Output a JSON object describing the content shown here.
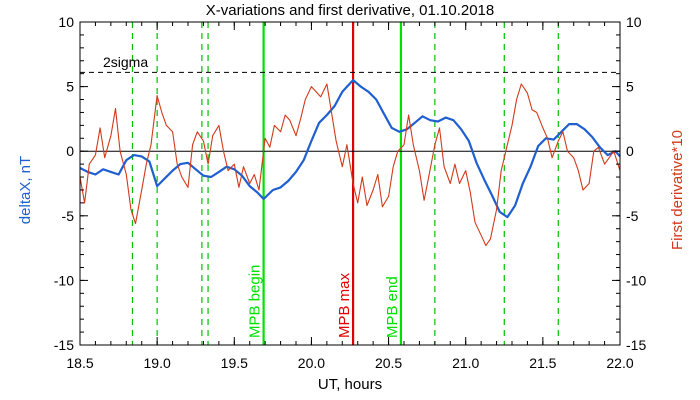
{
  "chart_data": {
    "type": "line",
    "title": "X-variations and first derivative, 01.10.2018",
    "xlabel": "UT, hours",
    "ylabel_left": "deltaX, nT",
    "ylabel_right": "First derivative*10",
    "xlim": [
      18.5,
      22.0
    ],
    "ylim_left": [
      -15,
      10
    ],
    "ylim_right": [
      -15,
      10
    ],
    "x_ticks": [
      "18.5",
      "19.0",
      "19.5",
      "20.0",
      "20.5",
      "21.0",
      "21.5",
      "22.0"
    ],
    "y_ticks": [
      "10",
      "5",
      "0",
      "-5",
      "-10",
      "-15"
    ],
    "grid": false,
    "zero_line": 0,
    "threshold": {
      "label": "2sigma",
      "value": 6.1
    },
    "vertical_lines": [
      {
        "x": 19.69,
        "label": "MPB begin",
        "color": "#00e000",
        "style": "solid"
      },
      {
        "x": 20.27,
        "label": "MPB max",
        "color": "#e00000",
        "style": "solid"
      },
      {
        "x": 20.58,
        "label": "MPB end",
        "color": "#00e000",
        "style": "solid"
      },
      {
        "x": 18.84,
        "label": "",
        "color": "#00c000",
        "style": "dashed"
      },
      {
        "x": 19.0,
        "label": "",
        "color": "#00c000",
        "style": "dashed"
      },
      {
        "x": 19.29,
        "label": "",
        "color": "#00c000",
        "style": "dashed"
      },
      {
        "x": 19.33,
        "label": "",
        "color": "#00c000",
        "style": "dashed"
      },
      {
        "x": 20.8,
        "label": "",
        "color": "#00c000",
        "style": "dashed"
      },
      {
        "x": 21.25,
        "label": "",
        "color": "#00c000",
        "style": "dashed"
      },
      {
        "x": 21.6,
        "label": "",
        "color": "#00c000",
        "style": "dashed"
      }
    ],
    "series": [
      {
        "axis": "left",
        "color": "#1f5fd0",
        "x": [
          18.5,
          18.55,
          18.6,
          18.65,
          18.7,
          18.75,
          18.8,
          18.85,
          18.9,
          18.95,
          19.0,
          19.05,
          19.1,
          19.15,
          19.2,
          19.25,
          19.3,
          19.35,
          19.4,
          19.45,
          19.5,
          19.55,
          19.6,
          19.65,
          19.69,
          19.75,
          19.8,
          19.85,
          19.9,
          19.95,
          20.0,
          20.05,
          20.1,
          20.15,
          20.2,
          20.27,
          20.32,
          20.37,
          20.42,
          20.47,
          20.52,
          20.57,
          20.62,
          20.67,
          20.72,
          20.77,
          20.82,
          20.87,
          20.92,
          20.97,
          21.02,
          21.07,
          21.12,
          21.17,
          21.22,
          21.27,
          21.32,
          21.37,
          21.42,
          21.47,
          21.52,
          21.57,
          21.62,
          21.67,
          21.72,
          21.77,
          21.82,
          21.87,
          21.92,
          21.97,
          22.0
        ],
        "y": [
          -1.3,
          -1.6,
          -1.8,
          -1.4,
          -1.6,
          -1.8,
          -0.7,
          -0.3,
          -0.4,
          -0.8,
          -2.7,
          -2.1,
          -1.5,
          -1.0,
          -0.9,
          -1.4,
          -1.9,
          -2.0,
          -1.6,
          -1.2,
          -1.4,
          -1.9,
          -2.7,
          -3.2,
          -3.7,
          -3.0,
          -2.8,
          -2.3,
          -1.6,
          -0.7,
          0.8,
          2.2,
          2.8,
          3.5,
          4.6,
          5.5,
          5.0,
          4.6,
          4.0,
          2.9,
          1.8,
          1.5,
          1.7,
          2.2,
          2.7,
          2.4,
          2.3,
          2.6,
          2.4,
          1.7,
          0.8,
          -0.9,
          -2.2,
          -3.4,
          -4.7,
          -5.1,
          -4.2,
          -2.5,
          -1.2,
          0.4,
          1.0,
          0.9,
          1.5,
          2.1,
          2.1,
          1.7,
          1.1,
          0.3,
          -0.3,
          0.0,
          -0.4
        ]
      },
      {
        "axis": "right",
        "color": "#d03a1a",
        "x": [
          18.5,
          18.53,
          18.56,
          18.6,
          18.63,
          18.66,
          18.7,
          18.73,
          18.76,
          18.8,
          18.83,
          18.86,
          18.9,
          18.93,
          18.96,
          19.0,
          19.03,
          19.06,
          19.1,
          19.13,
          19.16,
          19.2,
          19.23,
          19.26,
          19.3,
          19.33,
          19.36,
          19.4,
          19.43,
          19.46,
          19.5,
          19.53,
          19.56,
          19.6,
          19.63,
          19.66,
          19.7,
          19.73,
          19.76,
          19.8,
          19.83,
          19.86,
          19.9,
          19.93,
          19.96,
          20.0,
          20.03,
          20.06,
          20.1,
          20.13,
          20.16,
          20.2,
          20.23,
          20.27,
          20.3,
          20.33,
          20.36,
          20.4,
          20.43,
          20.46,
          20.5,
          20.53,
          20.56,
          20.6,
          20.63,
          20.66,
          20.7,
          20.73,
          20.76,
          20.8,
          20.83,
          20.86,
          20.9,
          20.93,
          20.96,
          21.0,
          21.03,
          21.06,
          21.1,
          21.13,
          21.16,
          21.2,
          21.23,
          21.26,
          21.3,
          21.33,
          21.36,
          21.4,
          21.43,
          21.46,
          21.5,
          21.53,
          21.56,
          21.6,
          21.63,
          21.66,
          21.7,
          21.73,
          21.76,
          21.8,
          21.83,
          21.86,
          21.9,
          21.93,
          21.96,
          22.0
        ],
        "y": [
          -2.0,
          -4.0,
          -1.0,
          -0.3,
          1.8,
          -0.5,
          1.2,
          3.3,
          0.0,
          -1.8,
          -4.5,
          -5.6,
          -3.0,
          -1.0,
          0.5,
          4.3,
          3.0,
          2.0,
          1.5,
          -1.0,
          -2.0,
          -2.8,
          0.5,
          1.5,
          0.8,
          -1.0,
          1.2,
          2.0,
          0.0,
          -1.5,
          -1.0,
          -2.8,
          -1.2,
          -2.5,
          -1.8,
          -3.0,
          1.0,
          0.3,
          2.0,
          1.5,
          2.8,
          2.4,
          1.2,
          2.5,
          4.0,
          5.0,
          4.6,
          4.2,
          5.2,
          3.0,
          0.8,
          -1.2,
          0.5,
          -2.5,
          -4.0,
          -2.0,
          -4.2,
          -3.0,
          -1.8,
          -4.3,
          -3.5,
          -1.2,
          0.0,
          0.5,
          2.8,
          0.5,
          -1.5,
          -3.8,
          -2.0,
          0.5,
          1.8,
          -1.2,
          -2.5,
          -1.0,
          -2.5,
          -1.5,
          -3.2,
          -5.5,
          -6.5,
          -7.3,
          -6.8,
          -4.5,
          -1.5,
          0.0,
          2.0,
          4.0,
          5.2,
          4.5,
          3.2,
          3.0,
          1.8,
          1.0,
          -0.5,
          0.8,
          1.5,
          0.0,
          -0.5,
          -1.5,
          -3.0,
          -2.5,
          0.0,
          0.3,
          -1.0,
          -0.5,
          0.0,
          -1.5
        ]
      }
    ]
  }
}
